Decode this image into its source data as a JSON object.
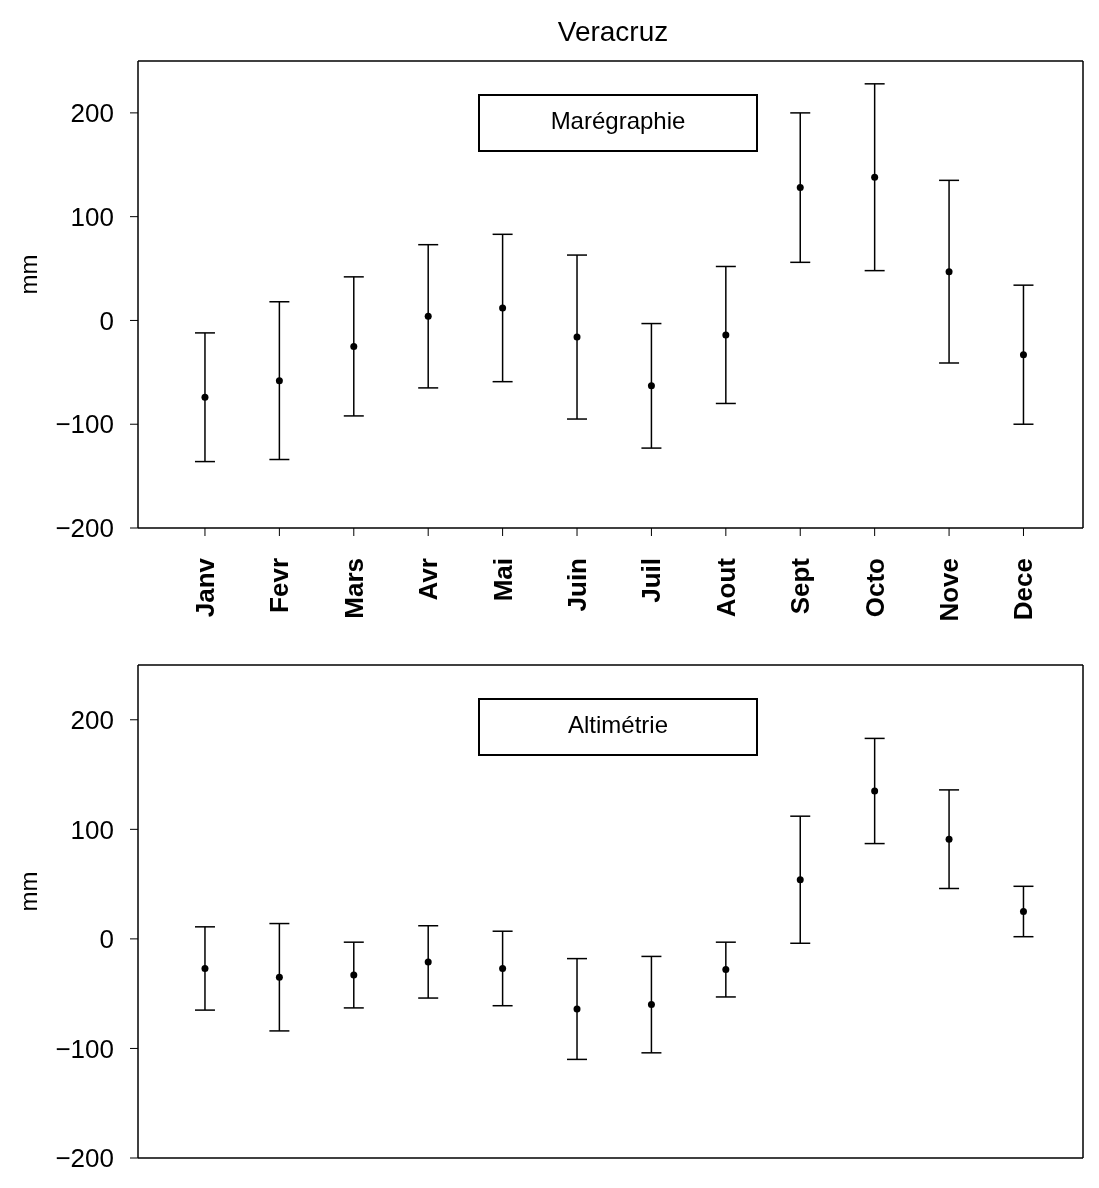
{
  "chart_data": [
    {
      "type": "scatter",
      "title": "Veracruz",
      "ylabel": "mm",
      "annotations": [
        "Marégraphie"
      ],
      "categories": [
        "Janv",
        "Fevr",
        "Mars",
        "Avr",
        "Mai",
        "Juin",
        "Juil",
        "Aout",
        "Sept",
        "Octo",
        "Nove",
        "Dece"
      ],
      "series": [
        {
          "color": "#000000",
          "values": [
            -74,
            -58,
            -25,
            4,
            12,
            -16,
            -63,
            -14,
            128,
            138,
            47,
            -33
          ],
          "errors": [
            62,
            76,
            67,
            69,
            71,
            79,
            60,
            66,
            72,
            90,
            88,
            67
          ]
        }
      ],
      "ylim": [
        -200,
        250
      ],
      "yticks": [
        -200,
        -100,
        0,
        100,
        200
      ],
      "marker": "circle",
      "grid": false,
      "legend": false
    },
    {
      "type": "scatter",
      "ylabel": "mm",
      "annotations": [
        "Altimétrie"
      ],
      "categories": [
        null,
        null,
        null,
        null,
        null,
        null,
        null,
        null,
        null,
        null,
        null,
        null
      ],
      "series": [
        {
          "color": "#000000",
          "values": [
            -27,
            -35,
            -33,
            -21,
            -27,
            -64,
            -60,
            -28,
            54,
            135,
            91,
            25
          ],
          "errors": [
            38,
            49,
            30,
            33,
            34,
            46,
            44,
            25,
            58,
            48,
            45,
            23
          ]
        }
      ],
      "ylim": [
        -200,
        250
      ],
      "yticks": [
        -200,
        -100,
        0,
        100,
        200
      ],
      "marker": "circle",
      "grid": false,
      "legend": false,
      "tick_labels": "y"
    }
  ]
}
